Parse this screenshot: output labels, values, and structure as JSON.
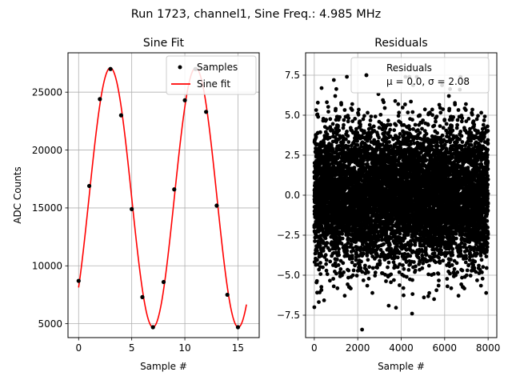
{
  "figure": {
    "suptitle": "Run 1723, channel1, Sine Freq.: 4.985 MHz"
  },
  "chart_data": [
    {
      "type": "line",
      "title": "Sine Fit",
      "xlabel": "Sample #",
      "ylabel": "ADC Counts",
      "xlim": [
        -1.0,
        17.0
      ],
      "ylim": [
        3800,
        28400
      ],
      "xticks": [
        0,
        5,
        10,
        15
      ],
      "yticks": [
        5000,
        10000,
        15000,
        20000,
        25000
      ],
      "grid": true,
      "legend": {
        "placement": "top-right",
        "entries": [
          "Samples",
          "Sine fit"
        ]
      },
      "fit": {
        "amplitude": 11200,
        "offset": 15900,
        "period": 8.03,
        "phase_sample": 0.98
      },
      "series": [
        {
          "name": "Samples",
          "kind": "scatter",
          "color": "#000000",
          "x": [
            0,
            1,
            2,
            3,
            4,
            5,
            6,
            7,
            8,
            9,
            10,
            11,
            12,
            13,
            14,
            15
          ],
          "y": [
            8700,
            16900,
            24400,
            27000,
            23000,
            14900,
            7300,
            4700,
            8600,
            16600,
            24300,
            27000,
            23300,
            15200,
            7500,
            4700
          ]
        },
        {
          "name": "Sine fit",
          "kind": "line",
          "color": "#ff0000",
          "x_range": [
            0,
            15.8
          ]
        }
      ]
    },
    {
      "type": "scatter",
      "title": "Residuals",
      "xlabel": "Sample #",
      "ylabel": "",
      "xlim": [
        -400,
        8400
      ],
      "ylim": [
        -8.9,
        8.9
      ],
      "xticks": [
        0,
        2000,
        4000,
        6000,
        8000
      ],
      "yticks": [
        -7.5,
        -5.0,
        -2.5,
        0.0,
        2.5,
        5.0,
        7.5
      ],
      "ytick_labels": [
        "−7.5",
        "−5.0",
        "−2.5",
        "0.0",
        "2.5",
        "5.0",
        "7.5"
      ],
      "grid": true,
      "legend": {
        "placement": "top-right",
        "entries": [
          "Residuals"
        ],
        "stats_line": "μ = 0.0, σ = 2.08"
      },
      "series": [
        {
          "name": "Residuals",
          "color": "#000000",
          "n_points": 8000,
          "mean": 0.0,
          "std": 2.08,
          "x_range": [
            0,
            7999
          ],
          "notable_points": [
            {
              "x": 2200,
              "y": -8.4
            },
            {
              "x": 900,
              "y": 7.2
            },
            {
              "x": 4200,
              "y": 7.4
            },
            {
              "x": 6700,
              "y": 6.6
            },
            {
              "x": 4500,
              "y": -7.4
            },
            {
              "x": 0,
              "y": -7.0
            }
          ]
        }
      ]
    }
  ]
}
